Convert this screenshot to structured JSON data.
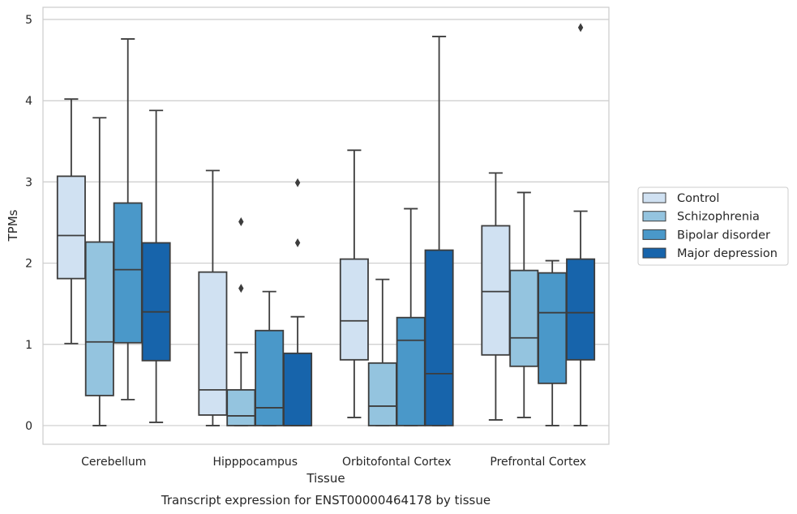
{
  "chart_data": {
    "type": "box",
    "caption": "Transcript expression for ENST00000464178 by tissue",
    "xlabel": "Tissue",
    "ylabel": "TPMs",
    "ylim": [
      -0.23,
      5.15
    ],
    "yticks": [
      0,
      1,
      2,
      3,
      4,
      5
    ],
    "grid": "horizontal",
    "legend_position": "right",
    "categories": [
      "Cerebellum",
      "Hipppocampus",
      "Orbitofontal Cortex",
      "Prefrontal Cortex"
    ],
    "series": [
      {
        "name": "Control",
        "color": "#d0e1f2",
        "boxes": [
          {
            "whislo": 1.01,
            "q1": 1.81,
            "med": 2.34,
            "q3": 3.07,
            "whishi": 4.02,
            "fliers": []
          },
          {
            "whislo": 0.0,
            "q1": 0.13,
            "med": 0.44,
            "q3": 1.89,
            "whishi": 3.14,
            "fliers": []
          },
          {
            "whislo": 0.1,
            "q1": 0.81,
            "med": 1.29,
            "q3": 2.05,
            "whishi": 3.39,
            "fliers": []
          },
          {
            "whislo": 0.07,
            "q1": 0.87,
            "med": 1.65,
            "q3": 2.46,
            "whishi": 3.11,
            "fliers": []
          }
        ]
      },
      {
        "name": "Schizophrenia",
        "color": "#94c4df",
        "boxes": [
          {
            "whislo": 0.0,
            "q1": 0.37,
            "med": 1.03,
            "q3": 2.26,
            "whishi": 3.79,
            "fliers": []
          },
          {
            "whislo": 0.0,
            "q1": 0.0,
            "med": 0.12,
            "q3": 0.44,
            "whishi": 0.9,
            "fliers": [
              1.69,
              2.51
            ]
          },
          {
            "whislo": 0.0,
            "q1": 0.0,
            "med": 0.24,
            "q3": 0.77,
            "whishi": 1.8,
            "fliers": []
          },
          {
            "whislo": 0.1,
            "q1": 0.73,
            "med": 1.08,
            "q3": 1.91,
            "whishi": 2.87,
            "fliers": []
          }
        ]
      },
      {
        "name": "Bipolar disorder",
        "color": "#4a98c9",
        "boxes": [
          {
            "whislo": 0.32,
            "q1": 1.02,
            "med": 1.92,
            "q3": 2.74,
            "whishi": 4.76,
            "fliers": []
          },
          {
            "whislo": 0.0,
            "q1": 0.0,
            "med": 0.22,
            "q3": 1.17,
            "whishi": 1.65,
            "fliers": []
          },
          {
            "whislo": 0.0,
            "q1": 0.0,
            "med": 1.05,
            "q3": 1.33,
            "whishi": 2.67,
            "fliers": []
          },
          {
            "whislo": 0.0,
            "q1": 0.52,
            "med": 1.39,
            "q3": 1.88,
            "whishi": 2.03,
            "fliers": []
          }
        ]
      },
      {
        "name": "Major depression",
        "color": "#1764ab",
        "boxes": [
          {
            "whislo": 0.04,
            "q1": 0.8,
            "med": 1.4,
            "q3": 2.25,
            "whishi": 3.88,
            "fliers": []
          },
          {
            "whislo": 0.0,
            "q1": 0.0,
            "med": 0.0,
            "q3": 0.89,
            "whishi": 1.34,
            "fliers": [
              2.25,
              2.99
            ]
          },
          {
            "whislo": 0.0,
            "q1": 0.0,
            "med": 0.64,
            "q3": 2.16,
            "whishi": 4.79,
            "fliers": []
          },
          {
            "whislo": 0.0,
            "q1": 0.81,
            "med": 1.39,
            "q3": 2.05,
            "whishi": 2.64,
            "fliers": [
              4.9
            ]
          }
        ]
      }
    ]
  }
}
